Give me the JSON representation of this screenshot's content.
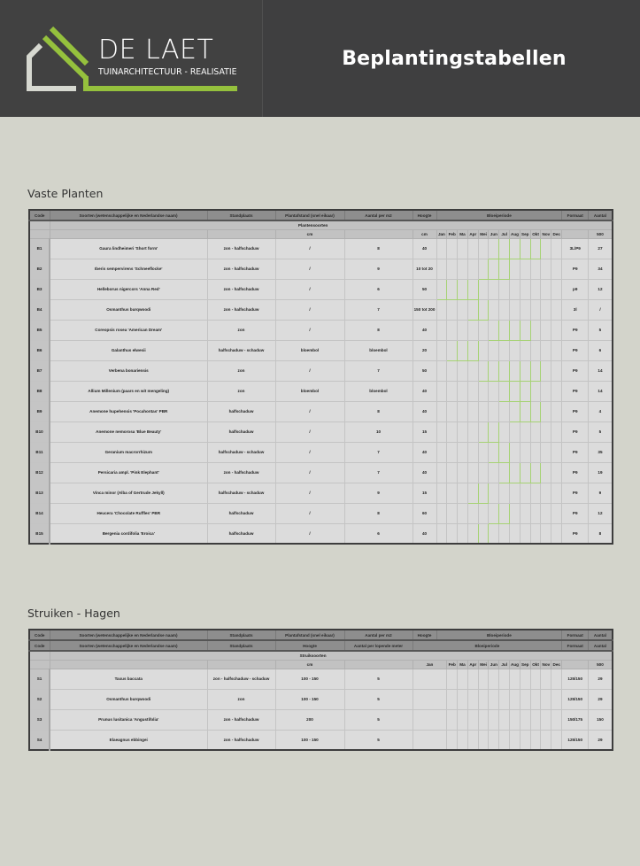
{
  "header": {
    "logo": {
      "name": "DE LAET",
      "tagline": "TUINARCHITECTUUR - REALISATIE",
      "colors": {
        "green": "#95c13d",
        "grey": "#d6d8d0"
      }
    },
    "title": "Beplantingstabellen"
  },
  "colors": {
    "background": "#d3d4cb",
    "header_bg": "#3f3f40",
    "bloom": "#93cc5a",
    "table_header": "#8e8e8e"
  },
  "months": [
    "Jan",
    "Feb",
    "Ma",
    "Apr",
    "Mei",
    "Jun",
    "Jul",
    "Aug",
    "Sep",
    "Okt",
    "Nov",
    "Dec"
  ],
  "vaste_planten": {
    "title": "Vaste Planten",
    "columns": {
      "code": "Code",
      "soorten": "Soorten (wetenschappelijke en Nederlandse naam)",
      "standplaats": "Standplaats",
      "plantafstand": "Plantafstand (snel eikaar)",
      "aantal_m2": "Aantal per m2",
      "hoogte": "Hoogte",
      "bloeiperiode": "Bloeiperiode",
      "formaat": "Formaat",
      "aantal": "Aantal"
    },
    "group_label": "Plantensoorten",
    "units": {
      "plantafstand": "cm",
      "hoogte": "cm",
      "aantal": "500"
    },
    "rows": [
      {
        "code": "B1",
        "soort": "Gaura lindheimeri 'Short form'",
        "standplaats": "zon - halfschaduw",
        "plantafstand": "/",
        "aantal_m2": "8",
        "hoogte": "40",
        "bloom": [
          5,
          9
        ],
        "formaat": "3L/P9",
        "aantal": "27"
      },
      {
        "code": "B2",
        "soort": "Iberis sempervirens 'Schneeflocke'",
        "standplaats": "zon - halfschaduw",
        "plantafstand": "/",
        "aantal_m2": "9",
        "hoogte": "10 tot 20",
        "bloom": [
          4,
          6
        ],
        "formaat": "P9",
        "aantal": "34"
      },
      {
        "code": "B3",
        "soort": "Helleborus nigercors 'Anna Red'",
        "standplaats": "zon - halfschaduw",
        "plantafstand": "/",
        "aantal_m2": "6",
        "hoogte": "50",
        "bloom": [
          0,
          3
        ],
        "formaat": "p9",
        "aantal": "12"
      },
      {
        "code": "B4",
        "soort": "Osmanthus burqwoodi",
        "standplaats": "zon - halfschaduw",
        "plantafstand": "/",
        "aantal_m2": "7",
        "hoogte": "150 tot 200",
        "bloom": [
          3,
          4
        ],
        "formaat": "3l",
        "aantal": "/"
      },
      {
        "code": "B5",
        "soort": "Coreopsis rosea 'American Dream'",
        "standplaats": "zon",
        "plantafstand": "/",
        "aantal_m2": "8",
        "hoogte": "40",
        "bloom": [
          5,
          8
        ],
        "formaat": "P9",
        "aantal": "5"
      },
      {
        "code": "B6",
        "soort": "Galanthus elwesii",
        "standplaats": "halfschaduw - schaduw",
        "plantafstand": "bloembol",
        "aantal_m2": "bloembol",
        "hoogte": "20",
        "bloom": [
          1,
          3
        ],
        "formaat": "P9",
        "aantal": "6"
      },
      {
        "code": "B7",
        "soort": "Verbena bonariensis",
        "standplaats": "zon",
        "plantafstand": "/",
        "aantal_m2": "7",
        "hoogte": "50",
        "bloom": [
          4,
          9
        ],
        "formaat": "P9",
        "aantal": "14"
      },
      {
        "code": "B8",
        "soort": "Allium Millenium (paars en wit mengeling)",
        "standplaats": "zon",
        "plantafstand": "bloembol",
        "aantal_m2": "bloembol",
        "hoogte": "40",
        "bloom": [
          6,
          8
        ],
        "formaat": "P9",
        "aantal": "14"
      },
      {
        "code": "B9",
        "soort": "Anemone hupehensis 'Pocahontas' PBR",
        "standplaats": "halfschaduw",
        "plantafstand": "/",
        "aantal_m2": "8",
        "hoogte": "40",
        "bloom": [
          7,
          9
        ],
        "formaat": "P9",
        "aantal": "4"
      },
      {
        "code": "B10",
        "soort": "Anemone nemorosa 'Blue Beauty'",
        "standplaats": "halfschaduw",
        "plantafstand": "/",
        "aantal_m2": "10",
        "hoogte": "15",
        "bloom": [
          4,
          5
        ],
        "formaat": "P9",
        "aantal": "5"
      },
      {
        "code": "B11",
        "soort": "Geranium macrorrhizum",
        "standplaats": "halfschaduw - schaduw",
        "plantafstand": "/",
        "aantal_m2": "7",
        "hoogte": "40",
        "bloom": [
          5,
          6
        ],
        "formaat": "P9",
        "aantal": "35"
      },
      {
        "code": "B12",
        "soort": "Persicaria ampl. 'Pink Elephant'",
        "standplaats": "zon - halfschaduw",
        "plantafstand": "/",
        "aantal_m2": "7",
        "hoogte": "40",
        "bloom": [
          6,
          9
        ],
        "formaat": "P9",
        "aantal": "19"
      },
      {
        "code": "B13",
        "soort": "Vinca minor (Alba of Gertrude Jekyll)",
        "standplaats": "halfschaduw - schaduw",
        "plantafstand": "/",
        "aantal_m2": "9",
        "hoogte": "15",
        "bloom": [
          3,
          4
        ],
        "formaat": "P9",
        "aantal": "9"
      },
      {
        "code": "B14",
        "soort": "Heucera 'Chocolate Ruffles' PBR",
        "standplaats": "halfschaduw",
        "plantafstand": "/",
        "aantal_m2": "8",
        "hoogte": "60",
        "bloom": [
          5,
          6
        ],
        "formaat": "P9",
        "aantal": "12"
      },
      {
        "code": "B15",
        "soort": "Bergenia cordifolia 'Eroica'",
        "standplaats": "halfschaduw",
        "plantafstand": "/",
        "aantal_m2": "6",
        "hoogte": "40",
        "bloom": [
          3,
          4
        ],
        "formaat": "P9",
        "aantal": "8"
      }
    ]
  },
  "struiken": {
    "title": "Struiken - Hagen",
    "columns_top": {
      "code": "Code",
      "soorten": "Soorten (wetenschappelijke en Nederlandse naam)",
      "standplaats": "Standplaats",
      "plantafstand": "Plantafstand (snel eikaar)",
      "aantal_m2": "Aantal per m2",
      "hoogte": "Hoogte",
      "bloeiperiode": "Bloeiperiode",
      "formaat": "Formaat",
      "aantal": "Aantal"
    },
    "columns": {
      "code": "Code",
      "soorten": "Soorten (wetenschappelijke en Nederlandse naam)",
      "standplaats": "Standplaats",
      "hoogte": "Hoogte",
      "aantal_lm": "Aantal per lopende meter",
      "bloeiperiode": "Bloeiperiode",
      "formaat": "Formaat",
      "aantal": "Aantal"
    },
    "group_label": "Struiksoorten",
    "units": {
      "hoogte": "cm",
      "aantal": "500"
    },
    "rows": [
      {
        "code": "S1",
        "soort": "Taxus baccata",
        "standplaats": "zon - halfschaduw - schaduw",
        "hoogte": "100 - 150",
        "aantal_lm": "5",
        "formaat": "125/150",
        "aantal": "29"
      },
      {
        "code": "S2",
        "soort": "Osmanthus burqwoodi",
        "standplaats": "zon",
        "hoogte": "100 - 150",
        "aantal_lm": "5",
        "formaat": "125/150",
        "aantal": "29"
      },
      {
        "code": "S3",
        "soort": "Prunus lusitanica 'Angustifolia'",
        "standplaats": "zon - halfschaduw",
        "hoogte": "200",
        "aantal_lm": "5",
        "formaat": "150/175",
        "aantal": "150"
      },
      {
        "code": "S4",
        "soort": "Elaeagnus ebbingei",
        "standplaats": "zon - halfschaduw",
        "hoogte": "100 - 150",
        "aantal_lm": "5",
        "formaat": "125/150",
        "aantal": "29"
      }
    ]
  }
}
